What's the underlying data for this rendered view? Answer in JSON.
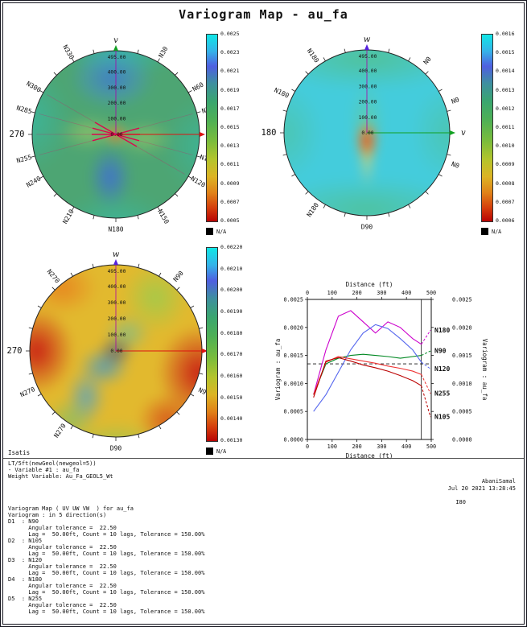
{
  "title": "Variogram Map - au_fa",
  "maps": [
    {
      "id": "uv",
      "plane": "UV",
      "h_axis": {
        "label": "u",
        "color": "#dd1111"
      },
      "v_axis": {
        "label": "v",
        "color": "#11a022"
      },
      "axis_line_color": "#aa00aa",
      "distance_ticks": [
        {
          "v": 495,
          "t": "495.00"
        },
        {
          "v": 400,
          "t": "400.00"
        },
        {
          "v": 300,
          "t": "300.00"
        },
        {
          "v": 200,
          "t": "200.00"
        },
        {
          "v": 100,
          "t": "100.00"
        },
        {
          "v": 0,
          "t": "0.00"
        }
      ],
      "direction_lines": [
        75,
        90,
        105,
        120
      ],
      "azimuth_labels": [
        {
          "t": "N30",
          "a": 30,
          "c": "#111111"
        },
        {
          "t": "N60",
          "a": 60,
          "c": "#111111"
        },
        {
          "t": "N75",
          "a": 75,
          "c": "#2222cc"
        },
        {
          "t": "N105",
          "a": 105,
          "c": "#2222cc"
        },
        {
          "t": "N120",
          "a": 120,
          "c": "#2222cc"
        },
        {
          "t": "N150",
          "a": 150,
          "c": "#111111"
        },
        {
          "t": "N180",
          "a": 180,
          "c": "#2222cc"
        },
        {
          "t": "N210",
          "a": 210,
          "c": "#111111"
        },
        {
          "t": "N240",
          "a": 240,
          "c": "#111111"
        },
        {
          "t": "N255",
          "a": 255,
          "c": "#2222cc"
        },
        {
          "t": "270",
          "a": 270,
          "c": "#111111",
          "big": true
        },
        {
          "t": "N285",
          "a": 285,
          "c": "#2222cc"
        },
        {
          "t": "N300",
          "a": 300,
          "c": "#2222cc"
        },
        {
          "t": "N330",
          "a": 330,
          "c": "#111111"
        }
      ],
      "colorbar": {
        "labels": [
          "0.0025",
          "0.0023",
          "0.0021",
          "0.0019",
          "0.0017",
          "0.0015",
          "0.0013",
          "0.0011",
          "0.0009",
          "0.0007",
          "0.0005"
        ],
        "na_label": "N/A"
      }
    },
    {
      "id": "vw",
      "plane": "VW",
      "h_axis": {
        "label": "v",
        "color": "#11a022"
      },
      "v_axis": {
        "label": "w",
        "color": "#5522dd"
      },
      "axis_line_color": "#aa00aa",
      "distance_ticks": [
        {
          "v": 495,
          "t": "495.00"
        },
        {
          "v": 400,
          "t": "400.00"
        },
        {
          "v": 300,
          "t": "300.00"
        },
        {
          "v": 200,
          "t": "200.00"
        },
        {
          "v": 100,
          "t": "100.00"
        },
        {
          "v": 0,
          "t": "0.00"
        }
      ],
      "direction_lines": [],
      "azimuth_labels": [
        {
          "t": "N0",
          "a": 40,
          "c": "#111111"
        },
        {
          "t": "N0",
          "a": 70,
          "c": "#111111"
        },
        {
          "t": "N0",
          "a": 110,
          "c": "#111111"
        },
        {
          "t": "D90",
          "a": 180,
          "c": "#111111"
        },
        {
          "t": "N180",
          "a": 215,
          "c": "#111111"
        },
        {
          "t": "180",
          "a": 270,
          "c": "#111111",
          "big": true
        },
        {
          "t": "N180",
          "a": 295,
          "c": "#111111"
        },
        {
          "t": "N180",
          "a": 325,
          "c": "#111111"
        }
      ],
      "colorbar": {
        "labels": [
          "0.0016",
          "0.0015",
          "0.0014",
          "0.0013",
          "0.0012",
          "0.0011",
          "0.0010",
          "0.0009",
          "0.0008",
          "0.0007",
          "0.0006"
        ],
        "na_label": "N/A"
      }
    },
    {
      "id": "uw",
      "plane": "UW",
      "h_axis": {
        "label": "u",
        "color": "#dd1111"
      },
      "v_axis": {
        "label": "w",
        "color": "#5522dd"
      },
      "axis_line_color": "#aa00aa",
      "distance_ticks": [
        {
          "v": 495,
          "t": "495.00"
        },
        {
          "v": 400,
          "t": "400.00"
        },
        {
          "v": 300,
          "t": "300.00"
        },
        {
          "v": 200,
          "t": "200.00"
        },
        {
          "v": 100,
          "t": "100.00"
        },
        {
          "v": 0,
          "t": "0.00"
        }
      ],
      "direction_lines": [],
      "azimuth_labels": [
        {
          "t": "N90",
          "a": 40,
          "c": "#111111"
        },
        {
          "t": "N90",
          "a": 115,
          "c": "#111111"
        },
        {
          "t": "D90",
          "a": 180,
          "c": "#111111"
        },
        {
          "t": "N270",
          "a": 215,
          "c": "#111111"
        },
        {
          "t": "N270",
          "a": 245,
          "c": "#111111"
        },
        {
          "t": "270",
          "a": 270,
          "c": "#111111",
          "big": true
        },
        {
          "t": "N270",
          "a": 320,
          "c": "#111111"
        }
      ],
      "colorbar": {
        "labels": [
          "0.00220",
          "0.00210",
          "0.00200",
          "0.00190",
          "0.00180",
          "0.00170",
          "0.00160",
          "0.00150",
          "0.00140",
          "0.00130"
        ],
        "na_label": "N/A"
      }
    }
  ],
  "chart_data": {
    "type": "line",
    "xlabel_top": "Distance (ft)",
    "xlabel_bottom": "Distance (ft)",
    "ylabel_left": "Variogram : au_fa",
    "ylabel_right": "Variogram : au_fa",
    "xlim": [
      0,
      500
    ],
    "ylim": [
      0.0,
      0.0025
    ],
    "xticks": [
      0,
      100,
      200,
      300,
      400,
      500
    ],
    "xtick_labels": [
      "0",
      "100",
      "200",
      "300",
      "400",
      "500"
    ],
    "yticks": [
      0.0,
      0.0005,
      0.001,
      0.0015,
      0.002,
      0.0025
    ],
    "ytick_labels": [
      "0.0000",
      "0.0005",
      "0.0010",
      "0.0015",
      "0.0020",
      "0.0025"
    ],
    "sill_line_y": 0.00135,
    "max_distance_line_x": 460,
    "series": [
      {
        "name": "N180",
        "color": "#cc00cc",
        "x": [
          25,
          75,
          125,
          175,
          225,
          275,
          325,
          375,
          425,
          460
        ],
        "y": [
          0.0008,
          0.0016,
          0.0022,
          0.0023,
          0.0021,
          0.0019,
          0.0021,
          0.002,
          0.0018,
          0.0017
        ],
        "dash_to": {
          "x": 497,
          "y": 0.00195
        }
      },
      {
        "name": "N90",
        "color": "#008822",
        "x": [
          25,
          75,
          125,
          175,
          225,
          275,
          325,
          375,
          425,
          460
        ],
        "y": [
          0.0008,
          0.00135,
          0.00145,
          0.0015,
          0.00152,
          0.0015,
          0.00148,
          0.00145,
          0.00148,
          0.0015
        ],
        "dash_to": {
          "x": 497,
          "y": 0.00158
        }
      },
      {
        "name": "N120",
        "color": "#5566ee",
        "x": [
          25,
          75,
          125,
          175,
          225,
          275,
          325,
          375,
          425,
          460
        ],
        "y": [
          0.0005,
          0.0008,
          0.0012,
          0.0016,
          0.0019,
          0.00205,
          0.00198,
          0.0018,
          0.0016,
          0.00138
        ],
        "dash_to": {
          "x": 497,
          "y": 0.00126
        }
      },
      {
        "name": "N255",
        "color": "#ee3333",
        "x": [
          25,
          75,
          125,
          175,
          225,
          275,
          325,
          375,
          425,
          460
        ],
        "y": [
          0.0008,
          0.00138,
          0.00148,
          0.00144,
          0.0014,
          0.00136,
          0.00131,
          0.00127,
          0.00122,
          0.00116
        ],
        "dash_to": {
          "x": 497,
          "y": 0.00082
        }
      },
      {
        "name": "N105",
        "color": "#bb0000",
        "x": [
          25,
          75,
          125,
          175,
          225,
          275,
          325,
          375,
          425,
          460
        ],
        "y": [
          0.00075,
          0.0014,
          0.00146,
          0.0014,
          0.00133,
          0.00128,
          0.00122,
          0.00114,
          0.00105,
          0.00096
        ],
        "dash_to": {
          "x": 497,
          "y": 0.0004
        }
      }
    ]
  },
  "footer": {
    "app_name": "Isatis",
    "left_lines": [
      "LT/5ft(newGeol(newgeol=5))",
      "- Variable #1 : au_fa",
      "Weight Variable: Au_Fa_GEOL5_Wt"
    ],
    "author": "AbaniSamal",
    "datetime": "Jul 20 2021  13:28:45",
    "page_ref": "I80",
    "body_lines": [
      "Variogram Map ( UV UW VW  ) for au_fa",
      "Variogram : in 5 direction(s)",
      "D1  : N90",
      "      Angular tolerance =  22.50",
      "      Lag =  50.00ft, Count = 10 lags, Tolerance = 150.00%",
      "D2  : N105",
      "      Angular tolerance =  22.50",
      "      Lag =  50.00ft, Count = 10 lags, Tolerance = 150.00%",
      "D3  : N120",
      "      Angular tolerance =  22.50",
      "      Lag =  50.00ft, Count = 10 lags, Tolerance = 150.00%",
      "D4  : N180",
      "      Angular tolerance =  22.50",
      "      Lag =  50.00ft, Count = 10 lags, Tolerance = 150.00%",
      "D5  : N255",
      "      Angular tolerance =  22.50",
      "      Lag =  50.00ft, Count = 10 lags, Tolerance = 150.00%"
    ]
  }
}
